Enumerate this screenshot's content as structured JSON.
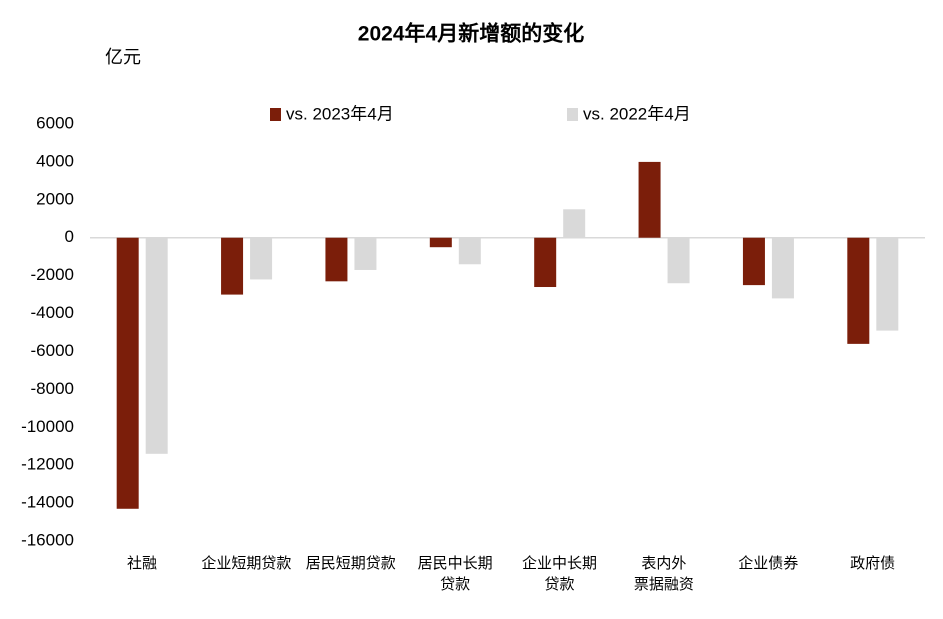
{
  "chart_data": {
    "type": "bar",
    "title": "2024年4月新增额的变化",
    "y_label": "亿元",
    "categories": [
      "社融",
      "企业短期贷款",
      "居民短期贷款",
      "居民中长期\n贷款",
      "企业中长期\n贷款",
      "表内外\n票据融资",
      "企业债券",
      "政府债"
    ],
    "series": [
      {
        "name": "vs. 2023年4月",
        "color": "#7b1e0a",
        "values": [
          -14300,
          -3000,
          -2300,
          -500,
          -2600,
          4000,
          -2500,
          -5600
        ]
      },
      {
        "name": "vs. 2022年4月",
        "color": "#d9d9d9",
        "values": [
          -11400,
          -2200,
          -1700,
          -1400,
          1500,
          -2400,
          -3200,
          -4900
        ]
      }
    ],
    "ylim": [
      -16000,
      6000
    ],
    "yticks": [
      -16000,
      -14000,
      -12000,
      -10000,
      -8000,
      -6000,
      -4000,
      -2000,
      0,
      2000,
      4000,
      6000
    ],
    "grid": false,
    "legend": "top"
  }
}
